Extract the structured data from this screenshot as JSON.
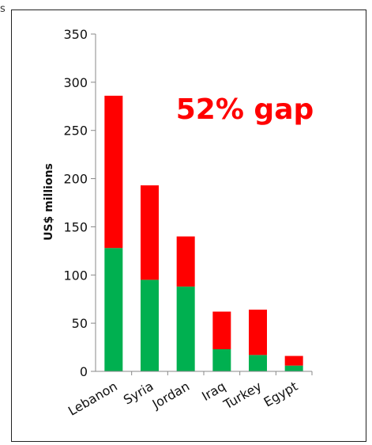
{
  "corner_text": "s",
  "chart_data": {
    "type": "bar",
    "stacked": true,
    "title": "",
    "xlabel": "",
    "ylabel": "US$ millions",
    "ylim": [
      0,
      350
    ],
    "yticks": [
      0,
      50,
      100,
      150,
      200,
      250,
      300,
      350
    ],
    "categories": [
      "Lebanon",
      "Syria",
      "Jordan",
      "Iraq",
      "Turkey",
      "Egypt"
    ],
    "series": [
      {
        "color": "#00b050",
        "values": [
          128,
          95,
          88,
          23,
          17,
          6
        ]
      },
      {
        "color": "#ff0000",
        "values": [
          158,
          98,
          52,
          39,
          47,
          10
        ]
      }
    ],
    "annotation": "52% gap",
    "grid": false,
    "legend": "none"
  }
}
